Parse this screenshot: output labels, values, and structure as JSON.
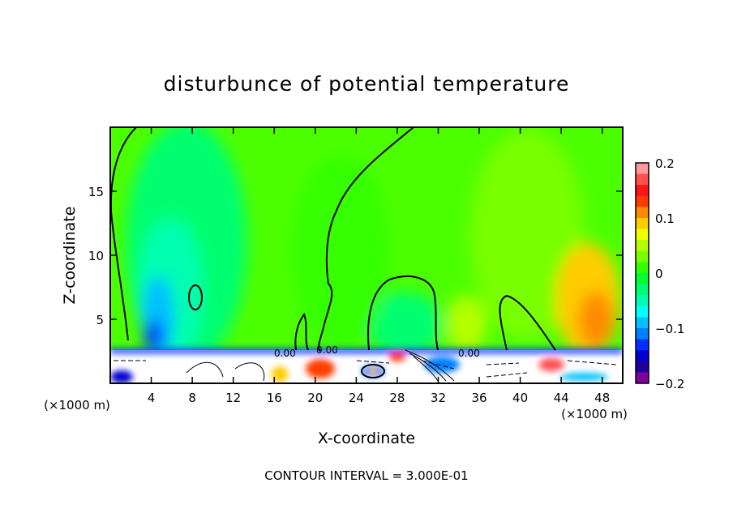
{
  "chart_data": {
    "type": "heatmap",
    "title": "disturbunce of potential temperature",
    "xlabel": "X-coordinate",
    "ylabel": "Z-coordinate",
    "x_unit_left": "(×1000 m)",
    "x_unit_right": "(×1000 m)",
    "xlim": [
      0,
      50
    ],
    "ylim": [
      0,
      20
    ],
    "xticks": [
      4,
      8,
      12,
      16,
      20,
      24,
      28,
      32,
      36,
      40,
      44,
      48
    ],
    "yticks": [
      5,
      10,
      15
    ],
    "colorbar": {
      "range": [
        -0.2,
        0.2
      ],
      "step": 0.02,
      "tick_values": [
        0.2,
        0.1,
        0,
        -0.1,
        -0.2
      ],
      "tick_labels": [
        "0.2",
        "0.1",
        "0",
        "−0.1",
        "−0.2"
      ],
      "colors_top_to_bottom": [
        "#ff9a9a",
        "#ff5050",
        "#ff1414",
        "#ff3c00",
        "#ff8a00",
        "#ffcc00",
        "#eeff00",
        "#b4ff00",
        "#78ff00",
        "#34ff00",
        "#00ff30",
        "#00ff70",
        "#00ffb0",
        "#00ffff",
        "#00c0ff",
        "#0080ff",
        "#0030ff",
        "#0000d0",
        "#20009c",
        "#80009c"
      ]
    },
    "contour_label": "0.00",
    "footer": "CONTOUR INTERVAL = 3.000E-01"
  }
}
